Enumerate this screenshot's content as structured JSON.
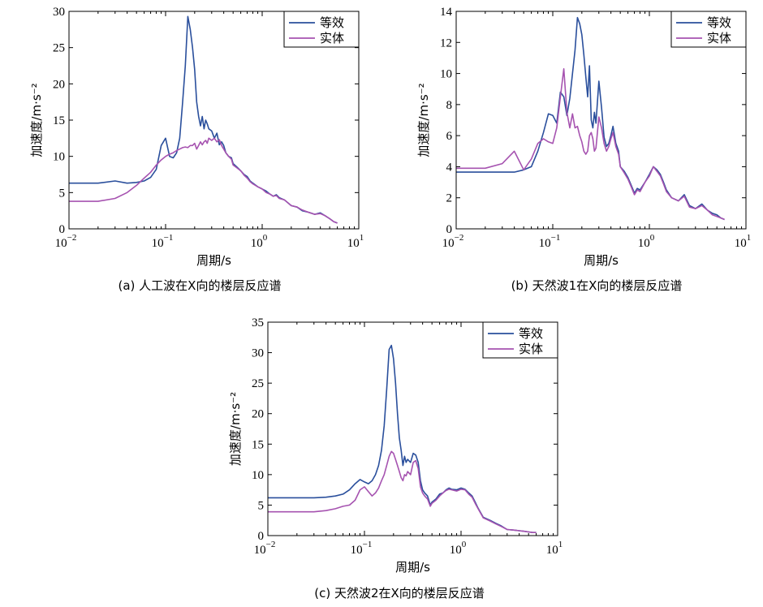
{
  "colors": {
    "series_eq": "#2a4f9c",
    "series_solid": "#a653b0"
  },
  "chart_data": [
    {
      "type": "line",
      "caption": "(a)  人工波在X向的楼层反应谱",
      "xlabel": "周期/s",
      "ylabel": "加速度/m·s⁻²",
      "xscale": "log",
      "xlim": [
        0.01,
        10
      ],
      "ylim": [
        0,
        30
      ],
      "yticks": [
        0,
        5,
        10,
        15,
        20,
        25,
        30
      ],
      "xticks": [
        {
          "base": "10",
          "exp": "−2"
        },
        {
          "base": "10",
          "exp": "−1"
        },
        {
          "base": "10",
          "exp": "0"
        },
        {
          "base": "10",
          "exp": "1"
        }
      ],
      "legend": "top-right",
      "series": [
        {
          "name": "等效",
          "color": "#2a4f9c",
          "x": [
            0.01,
            0.02,
            0.03,
            0.04,
            0.05,
            0.06,
            0.07,
            0.08,
            0.09,
            0.1,
            0.11,
            0.12,
            0.13,
            0.14,
            0.15,
            0.16,
            0.17,
            0.18,
            0.19,
            0.2,
            0.21,
            0.22,
            0.23,
            0.24,
            0.25,
            0.26,
            0.27,
            0.28,
            0.3,
            0.32,
            0.34,
            0.36,
            0.38,
            0.4,
            0.42,
            0.45,
            0.48,
            0.5,
            0.55,
            0.6,
            0.65,
            0.7,
            0.75,
            0.8,
            0.9,
            1.0,
            1.1,
            1.2,
            1.3,
            1.4,
            1.5,
            1.7,
            2.0,
            2.3,
            2.6,
            3.0,
            3.5,
            4.0,
            4.5,
            5.0,
            5.5,
            6.0
          ],
          "y": [
            6.3,
            6.3,
            6.6,
            6.3,
            6.4,
            6.6,
            7.1,
            8.2,
            11.5,
            12.5,
            10.0,
            9.8,
            10.5,
            12.5,
            17.5,
            22.5,
            29.3,
            27.5,
            25.0,
            22.0,
            17.5,
            15.5,
            14.2,
            15.5,
            13.8,
            15.0,
            14.5,
            13.8,
            13.5,
            12.5,
            13.2,
            11.6,
            12.0,
            11.5,
            10.5,
            10.0,
            9.8,
            9.0,
            8.5,
            8.0,
            7.5,
            7.2,
            6.6,
            6.3,
            5.8,
            5.5,
            5.2,
            4.8,
            4.5,
            4.7,
            4.3,
            4.0,
            3.2,
            3.0,
            2.5,
            2.3,
            2.0,
            2.2,
            1.8,
            1.4,
            1.0,
            0.8
          ]
        },
        {
          "name": "实体",
          "color": "#a653b0",
          "x": [
            0.01,
            0.02,
            0.03,
            0.04,
            0.05,
            0.06,
            0.07,
            0.08,
            0.09,
            0.1,
            0.11,
            0.12,
            0.13,
            0.14,
            0.15,
            0.16,
            0.17,
            0.18,
            0.19,
            0.2,
            0.21,
            0.22,
            0.23,
            0.24,
            0.25,
            0.26,
            0.27,
            0.28,
            0.3,
            0.32,
            0.34,
            0.36,
            0.38,
            0.4,
            0.42,
            0.45,
            0.48,
            0.5,
            0.55,
            0.6,
            0.65,
            0.7,
            0.75,
            0.8,
            0.9,
            1.0,
            1.1,
            1.2,
            1.3,
            1.4,
            1.5,
            1.7,
            2.0,
            2.3,
            2.6,
            3.0,
            3.5,
            4.0,
            4.5,
            5.0,
            5.5,
            6.0
          ],
          "y": [
            3.8,
            3.8,
            4.2,
            5.0,
            6.0,
            7.0,
            7.8,
            8.8,
            9.5,
            10.0,
            10.3,
            10.5,
            10.8,
            11.0,
            11.2,
            11.3,
            11.2,
            11.5,
            11.5,
            11.8,
            11.0,
            11.5,
            12.0,
            11.6,
            12.0,
            12.2,
            11.8,
            12.5,
            12.2,
            12.5,
            12.0,
            12.3,
            11.5,
            11.0,
            10.5,
            10.0,
            9.6,
            8.8,
            8.4,
            8.0,
            7.4,
            7.0,
            6.5,
            6.2,
            5.8,
            5.5,
            5.0,
            4.8,
            4.5,
            4.6,
            4.2,
            4.0,
            3.2,
            3.0,
            2.6,
            2.3,
            2.0,
            2.1,
            1.8,
            1.4,
            1.0,
            0.8
          ]
        }
      ]
    },
    {
      "type": "line",
      "caption": "(b)  天然波1在X向的楼层反应谱",
      "xlabel": "周期/s",
      "ylabel": "加速度/m·s⁻²",
      "xscale": "log",
      "xlim": [
        0.01,
        10
      ],
      "ylim": [
        0,
        14
      ],
      "yticks": [
        0,
        2,
        4,
        6,
        8,
        10,
        12,
        14
      ],
      "xticks": [
        {
          "base": "10",
          "exp": "−2"
        },
        {
          "base": "10",
          "exp": "−1"
        },
        {
          "base": "10",
          "exp": "0"
        },
        {
          "base": "10",
          "exp": "1"
        }
      ],
      "legend": "top-right",
      "series": [
        {
          "name": "等效",
          "color": "#2a4f9c",
          "x": [
            0.01,
            0.02,
            0.03,
            0.04,
            0.05,
            0.06,
            0.07,
            0.08,
            0.09,
            0.1,
            0.11,
            0.12,
            0.13,
            0.14,
            0.15,
            0.16,
            0.17,
            0.18,
            0.19,
            0.2,
            0.21,
            0.22,
            0.23,
            0.24,
            0.25,
            0.26,
            0.27,
            0.28,
            0.3,
            0.32,
            0.34,
            0.36,
            0.38,
            0.4,
            0.42,
            0.45,
            0.48,
            0.5,
            0.55,
            0.6,
            0.65,
            0.7,
            0.75,
            0.8,
            0.9,
            1.0,
            1.1,
            1.2,
            1.3,
            1.4,
            1.5,
            1.7,
            2.0,
            2.3,
            2.6,
            3.0,
            3.5,
            4.0,
            4.5,
            5.0,
            5.5,
            6.0
          ],
          "y": [
            3.65,
            3.65,
            3.65,
            3.65,
            3.8,
            4.0,
            5.0,
            6.2,
            7.4,
            7.3,
            6.8,
            8.8,
            8.5,
            7.3,
            8.4,
            10.0,
            11.5,
            13.6,
            13.2,
            12.5,
            11.2,
            9.8,
            8.5,
            10.5,
            7.0,
            6.5,
            7.5,
            6.8,
            9.5,
            7.8,
            5.9,
            5.3,
            5.5,
            6.0,
            6.6,
            5.5,
            5.0,
            4.0,
            3.7,
            3.3,
            2.8,
            2.3,
            2.6,
            2.5,
            3.0,
            3.5,
            4.0,
            3.8,
            3.5,
            3.0,
            2.5,
            2.0,
            1.8,
            2.2,
            1.5,
            1.3,
            1.6,
            1.2,
            1.0,
            0.9,
            0.7,
            0.6
          ]
        },
        {
          "name": "实体",
          "color": "#a653b0",
          "x": [
            0.01,
            0.02,
            0.03,
            0.04,
            0.05,
            0.06,
            0.07,
            0.08,
            0.09,
            0.1,
            0.11,
            0.12,
            0.13,
            0.14,
            0.15,
            0.16,
            0.17,
            0.18,
            0.19,
            0.2,
            0.21,
            0.22,
            0.23,
            0.24,
            0.25,
            0.26,
            0.27,
            0.28,
            0.3,
            0.32,
            0.34,
            0.36,
            0.38,
            0.4,
            0.42,
            0.45,
            0.48,
            0.5,
            0.55,
            0.6,
            0.65,
            0.7,
            0.75,
            0.8,
            0.9,
            1.0,
            1.1,
            1.2,
            1.3,
            1.4,
            1.5,
            1.7,
            2.0,
            2.3,
            2.6,
            3.0,
            3.5,
            4.0,
            4.5,
            5.0,
            5.5,
            6.0
          ],
          "y": [
            3.9,
            3.9,
            4.2,
            5.0,
            3.8,
            4.5,
            5.5,
            5.8,
            5.6,
            5.5,
            6.5,
            8.5,
            10.3,
            7.5,
            6.5,
            7.4,
            6.5,
            6.6,
            6.0,
            5.6,
            5.0,
            4.8,
            5.0,
            6.0,
            6.2,
            5.8,
            5.0,
            5.2,
            7.2,
            6.5,
            5.5,
            5.0,
            5.3,
            5.8,
            6.2,
            5.3,
            4.8,
            4.0,
            3.6,
            3.2,
            2.7,
            2.2,
            2.5,
            2.4,
            3.0,
            3.4,
            4.0,
            3.7,
            3.4,
            2.9,
            2.4,
            2.0,
            1.8,
            2.1,
            1.4,
            1.3,
            1.5,
            1.2,
            0.9,
            0.8,
            0.7,
            0.6
          ]
        }
      ]
    },
    {
      "type": "line",
      "caption": "(c)  天然波2在X向的楼层反应谱",
      "xlabel": "周期/s",
      "ylabel": "加速度/m·s⁻²",
      "xscale": "log",
      "xlim": [
        0.01,
        10
      ],
      "ylim": [
        0,
        35
      ],
      "yticks": [
        0,
        5,
        10,
        15,
        20,
        25,
        30,
        35
      ],
      "xticks": [
        {
          "base": "10",
          "exp": "−2"
        },
        {
          "base": "10",
          "exp": "−1"
        },
        {
          "base": "10",
          "exp": "0"
        },
        {
          "base": "10",
          "exp": "1"
        }
      ],
      "legend": "top-right",
      "series": [
        {
          "name": "等效",
          "color": "#2a4f9c",
          "x": [
            0.01,
            0.02,
            0.03,
            0.04,
            0.05,
            0.06,
            0.07,
            0.08,
            0.09,
            0.1,
            0.11,
            0.12,
            0.13,
            0.14,
            0.15,
            0.16,
            0.17,
            0.18,
            0.19,
            0.2,
            0.21,
            0.22,
            0.23,
            0.24,
            0.25,
            0.26,
            0.27,
            0.28,
            0.3,
            0.32,
            0.34,
            0.36,
            0.38,
            0.4,
            0.42,
            0.45,
            0.48,
            0.5,
            0.55,
            0.6,
            0.65,
            0.7,
            0.75,
            0.8,
            0.9,
            1.0,
            1.1,
            1.2,
            1.3,
            1.4,
            1.5,
            1.7,
            2.0,
            2.3,
            2.6,
            3.0,
            3.5,
            4.0,
            4.5,
            5.0,
            5.5,
            6.0
          ],
          "y": [
            6.2,
            6.2,
            6.2,
            6.3,
            6.5,
            6.8,
            7.5,
            8.5,
            9.2,
            8.8,
            8.5,
            9.0,
            10.0,
            11.5,
            14.0,
            18.0,
            24.0,
            30.5,
            31.2,
            29.0,
            25.0,
            20.0,
            16.0,
            14.0,
            11.5,
            13.0,
            12.0,
            12.5,
            12.0,
            13.5,
            13.2,
            12.0,
            9.0,
            7.5,
            7.0,
            6.5,
            5.0,
            5.5,
            6.0,
            6.8,
            7.0,
            7.5,
            7.8,
            7.6,
            7.5,
            7.8,
            7.6,
            7.0,
            6.5,
            5.5,
            4.5,
            3.0,
            2.5,
            2.0,
            1.6,
            1.0,
            0.9,
            0.8,
            0.7,
            0.6,
            0.5,
            0.5
          ]
        },
        {
          "name": "实体",
          "color": "#a653b0",
          "x": [
            0.01,
            0.02,
            0.03,
            0.04,
            0.05,
            0.06,
            0.07,
            0.08,
            0.09,
            0.1,
            0.11,
            0.12,
            0.13,
            0.14,
            0.15,
            0.16,
            0.17,
            0.18,
            0.19,
            0.2,
            0.21,
            0.22,
            0.23,
            0.24,
            0.25,
            0.26,
            0.27,
            0.28,
            0.3,
            0.32,
            0.34,
            0.36,
            0.38,
            0.4,
            0.42,
            0.45,
            0.48,
            0.5,
            0.55,
            0.6,
            0.65,
            0.7,
            0.75,
            0.8,
            0.9,
            1.0,
            1.1,
            1.2,
            1.3,
            1.4,
            1.5,
            1.7,
            2.0,
            2.3,
            2.6,
            3.0,
            3.5,
            4.0,
            4.5,
            5.0,
            5.5,
            6.0
          ],
          "y": [
            3.9,
            3.9,
            3.9,
            4.1,
            4.4,
            4.8,
            5.0,
            5.8,
            7.5,
            8.0,
            7.2,
            6.5,
            7.0,
            7.8,
            9.0,
            10.0,
            11.5,
            13.0,
            13.8,
            13.5,
            12.5,
            11.5,
            10.5,
            9.5,
            9.0,
            10.0,
            9.8,
            10.5,
            10.0,
            12.0,
            12.3,
            11.0,
            8.0,
            7.0,
            6.5,
            6.0,
            4.8,
            5.3,
            5.8,
            6.5,
            7.0,
            7.4,
            7.6,
            7.5,
            7.3,
            7.6,
            7.5,
            6.8,
            6.3,
            5.3,
            4.4,
            2.9,
            2.4,
            1.9,
            1.5,
            1.0,
            0.9,
            0.8,
            0.7,
            0.6,
            0.5,
            0.5
          ]
        }
      ]
    }
  ]
}
